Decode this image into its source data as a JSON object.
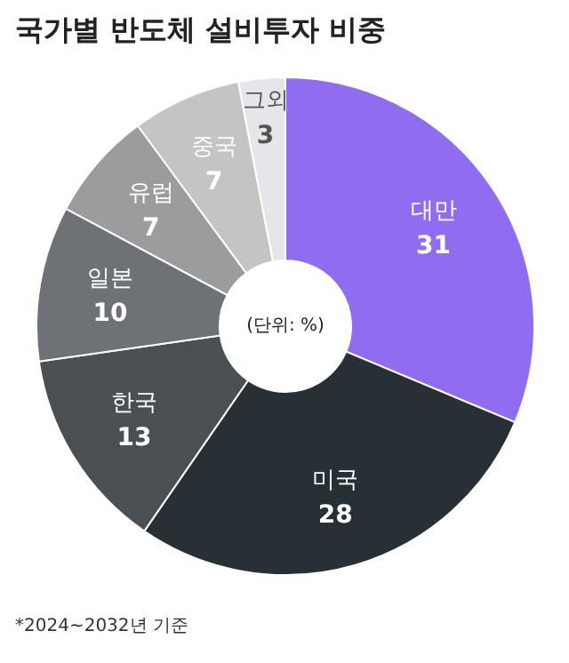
{
  "chart_data": {
    "type": "donut",
    "title": "국가별 반도체 설비투자 비중",
    "categories": [
      "대만",
      "미국",
      "한국",
      "일본",
      "유럽",
      "중국",
      "그외"
    ],
    "values": [
      31,
      28,
      13,
      10,
      7,
      7,
      3
    ],
    "colors": [
      "#8f6cf0",
      "#263035",
      "#4a4f53",
      "#6e7276",
      "#9a9c9e",
      "#c4c4c4",
      "#e6e6ea"
    ],
    "data_labels": true,
    "annotations": [
      "(단위: %)",
      "*2024~2032년 기준"
    ]
  }
}
